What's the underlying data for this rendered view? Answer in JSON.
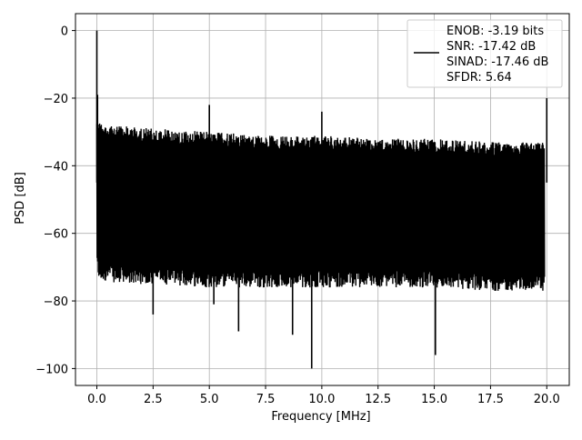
{
  "chart_data": {
    "type": "line",
    "xlabel": "Frequency [MHz]",
    "ylabel": "PSD [dB]",
    "xlim": [
      -0.95,
      21.0
    ],
    "ylim": [
      -105.0,
      5.0
    ],
    "grid": true,
    "legend_placement": "top-right",
    "line_color": "#000000",
    "xticks": [
      {
        "value": 0.0,
        "label": "0.0"
      },
      {
        "value": 2.5,
        "label": "2.5"
      },
      {
        "value": 5.0,
        "label": "5.0"
      },
      {
        "value": 7.5,
        "label": "7.5"
      },
      {
        "value": 10.0,
        "label": "10.0"
      },
      {
        "value": 12.5,
        "label": "12.5"
      },
      {
        "value": 15.0,
        "label": "15.0"
      },
      {
        "value": 17.5,
        "label": "17.5"
      },
      {
        "value": 20.0,
        "label": "20.0"
      }
    ],
    "yticks": [
      {
        "value": 0,
        "label": "0"
      },
      {
        "value": -20,
        "label": "−20"
      },
      {
        "value": -40,
        "label": "−40"
      },
      {
        "value": -60,
        "label": "−60"
      },
      {
        "value": -80,
        "label": "−80"
      },
      {
        "value": -100,
        "label": "−100"
      }
    ],
    "legend_lines": [
      "ENOB: -3.19 bits",
      "SNR: -17.42 dB",
      "SINAD: -17.46 dB",
      "SFDR: 5.64"
    ],
    "envelope": {
      "x": [
        0.0,
        0.1,
        0.5,
        1.0,
        2.5,
        5.0,
        7.5,
        10.0,
        12.5,
        15.0,
        17.5,
        19.9
      ],
      "upper": [
        -25,
        -27,
        -28,
        -28,
        -29,
        -30,
        -31,
        -31,
        -32,
        -32,
        -33,
        -33
      ],
      "lower": [
        -72,
        -74,
        -74,
        -75,
        -75,
        -76,
        -76,
        -76,
        -76,
        -76,
        -77,
        -77
      ]
    },
    "spikes": [
      {
        "x": 0.0,
        "y": 0
      },
      {
        "x": 0.03,
        "y": -19
      },
      {
        "x": 2.5,
        "y": -84
      },
      {
        "x": 5.0,
        "y": -22
      },
      {
        "x": 5.2,
        "y": -81
      },
      {
        "x": 6.3,
        "y": -89
      },
      {
        "x": 8.7,
        "y": -90
      },
      {
        "x": 9.55,
        "y": -100
      },
      {
        "x": 10.0,
        "y": -24
      },
      {
        "x": 15.05,
        "y": -96
      },
      {
        "x": 20.0,
        "y": -20
      }
    ]
  }
}
